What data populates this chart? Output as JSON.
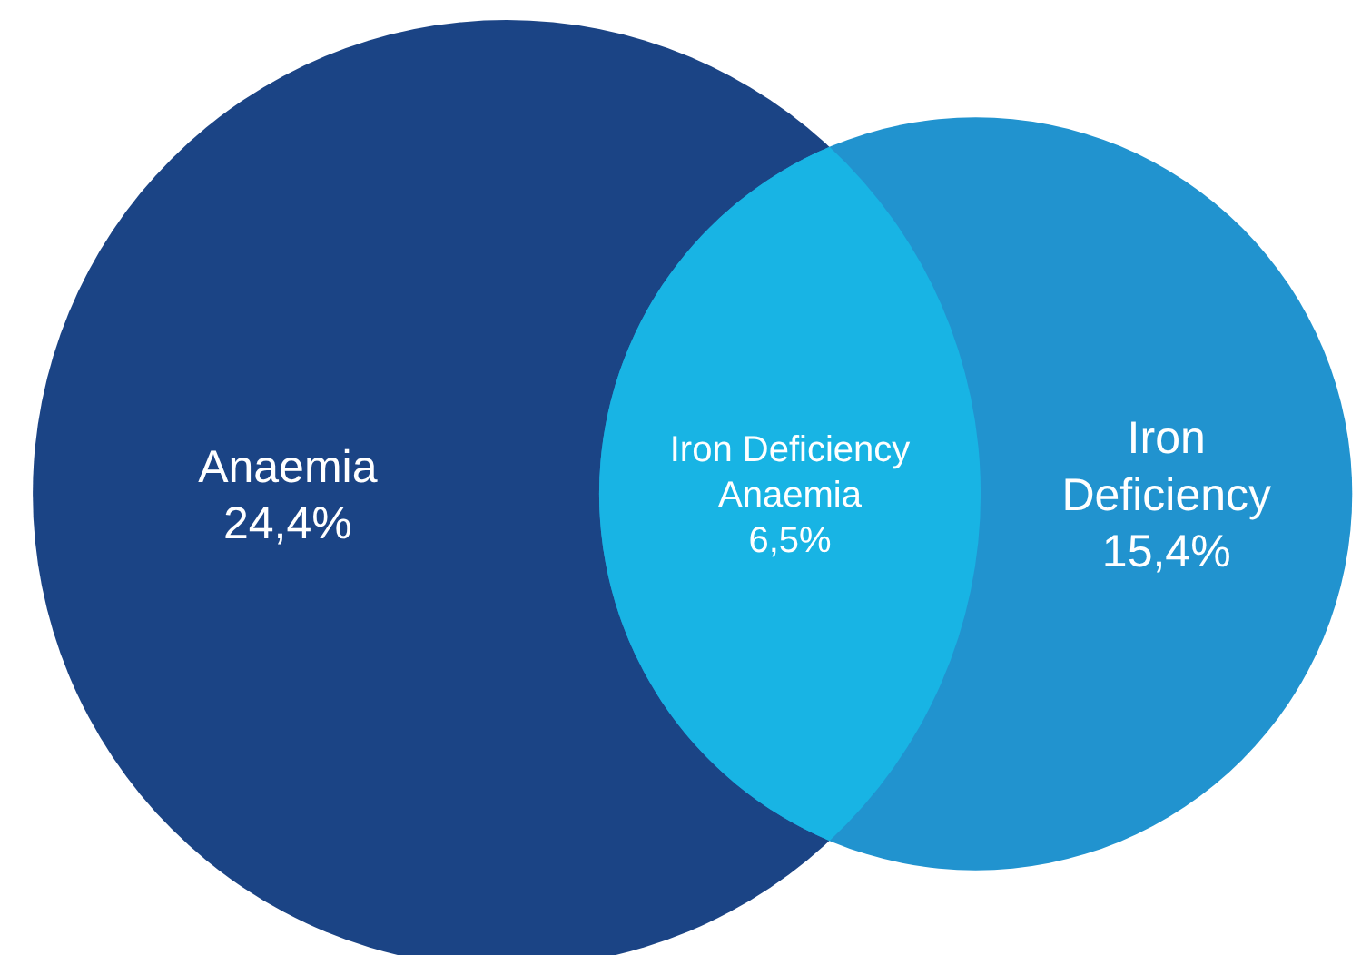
{
  "chart_data": {
    "type": "other",
    "categories": [
      "Anaemia",
      "Iron Deficiency Anaemia",
      "Iron Deficiency"
    ],
    "values": [
      24.4,
      6.5,
      15.4
    ],
    "value_labels": [
      "24,4%",
      "6,5%",
      "15,4%"
    ],
    "colors": [
      "#1b4485",
      "#18b4e4",
      "#2193cf"
    ]
  }
}
